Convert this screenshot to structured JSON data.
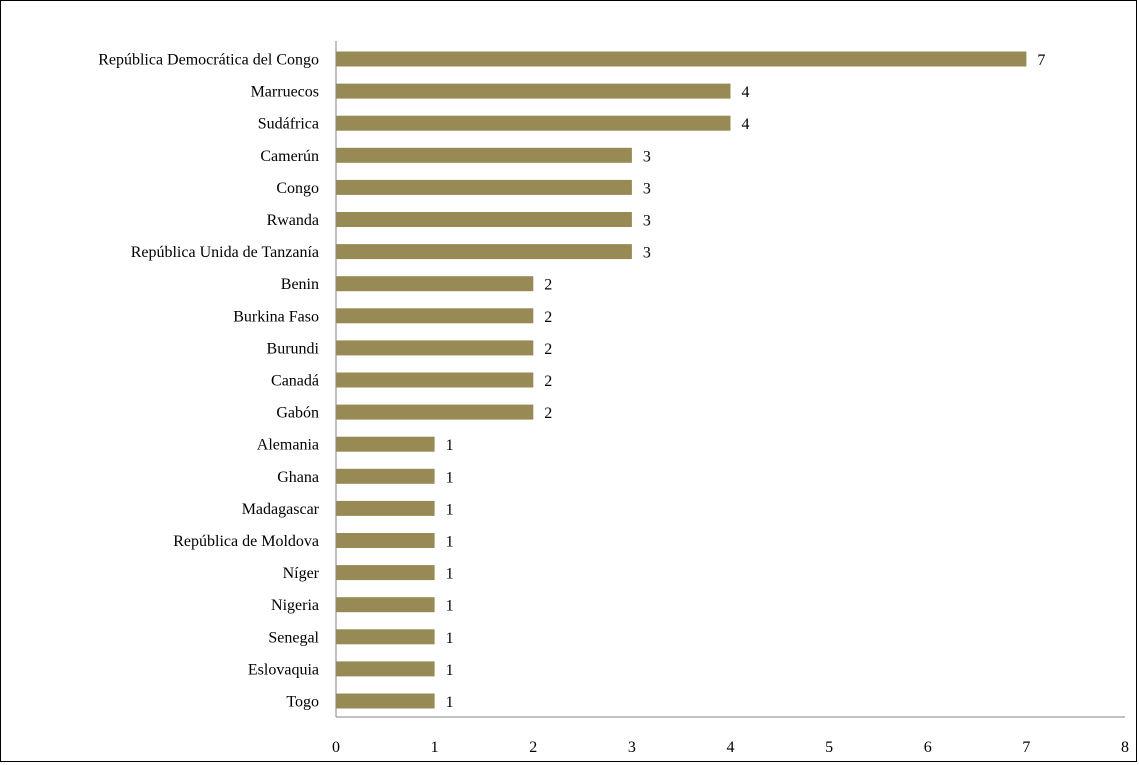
{
  "chart_data": {
    "type": "bar",
    "orientation": "horizontal",
    "title": "",
    "xlabel": "",
    "ylabel": "",
    "categories": [
      "República Democrática del Congo",
      "Marruecos",
      "Sudáfrica",
      "Camerún",
      "Congo",
      "Rwanda",
      "República Unida de Tanzanía",
      "Benin",
      "Burkina Faso",
      "Burundi",
      "Canadá",
      "Gabón",
      "Alemania",
      "Ghana",
      "Madagascar",
      "República de Moldova",
      "Níger",
      "Nigeria",
      "Senegal",
      "Eslovaquia",
      "Togo"
    ],
    "values": [
      7,
      4,
      4,
      3,
      3,
      3,
      3,
      2,
      2,
      2,
      2,
      2,
      1,
      1,
      1,
      1,
      1,
      1,
      1,
      1,
      1
    ],
    "data_labels": [
      "7",
      "4",
      "4",
      "3",
      "3",
      "3",
      "3",
      "2",
      "2",
      "2",
      "2",
      "2",
      "1",
      "1",
      "1",
      "1",
      "1",
      "1",
      "1",
      "1",
      "1"
    ],
    "xlim": [
      0,
      8
    ],
    "xticks": [
      "0",
      "1",
      "2",
      "3",
      "4",
      "5",
      "6",
      "7",
      "8"
    ],
    "grid": false,
    "legend": "none",
    "bar_color": "#978A54"
  }
}
